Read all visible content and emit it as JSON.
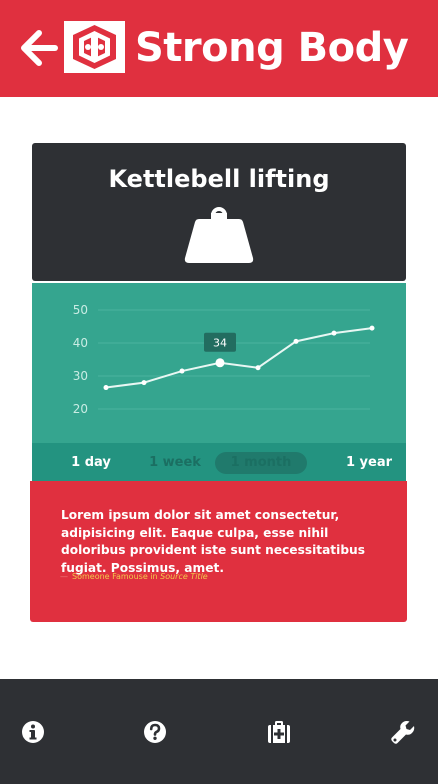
{
  "header": {
    "title": "Strong Body",
    "back_icon": "arrow-left-icon",
    "logo_icon": "strong-body-logo"
  },
  "card": {
    "title": "Kettlebell lifting",
    "icon": "weight-icon"
  },
  "chart_data": {
    "type": "line",
    "title": "",
    "xlabel": "",
    "ylabel": "",
    "y_ticks": [
      20,
      30,
      40,
      50
    ],
    "ylim": [
      15,
      52
    ],
    "values": [
      26.5,
      28,
      31.5,
      34,
      32.5,
      40.5,
      43,
      44.5
    ],
    "highlight": {
      "index": 3,
      "label": "34"
    },
    "grid": true
  },
  "ranges": [
    {
      "label": "1 day",
      "state": "active"
    },
    {
      "label": "1 week",
      "state": "dim"
    },
    {
      "label": "1 month",
      "state": "selected"
    },
    {
      "label": "1 year",
      "state": "active"
    }
  ],
  "quote": {
    "text": "Lorem ipsum dolor sit amet consectetur, adipisicing elit. Eaque culpa, esse nihil doloribus provident iste sunt necessitatibus fugiat. Possimus, amet.",
    "dash": "—",
    "author": "Someone Famouse in",
    "source": "Source Title"
  },
  "nav": [
    {
      "icon": "info-icon"
    },
    {
      "icon": "help-icon"
    },
    {
      "icon": "first-aid-kit-icon"
    },
    {
      "icon": "wrench-icon"
    }
  ],
  "colors": {
    "brand_red": "#e0303f",
    "dark": "#2e3034",
    "teal": "#35a58f",
    "teal_dark": "#239380",
    "accent_yellow": "#f2c84b"
  }
}
